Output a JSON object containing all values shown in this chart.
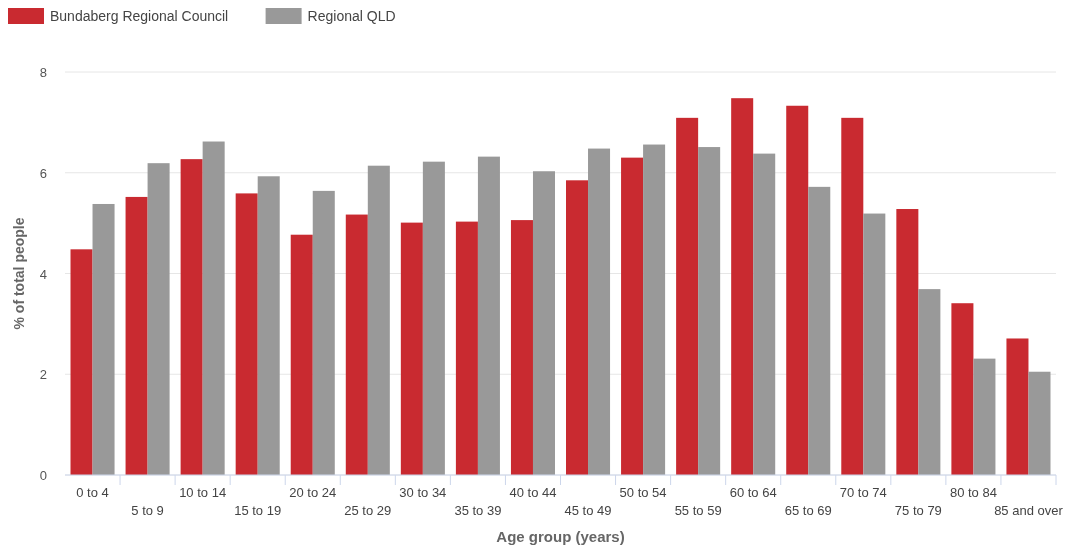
{
  "chart_data": {
    "type": "bar",
    "xlabel": "Age group (years)",
    "ylabel": "% of total people",
    "categories": [
      "0 to 4",
      "5 to 9",
      "10 to 14",
      "15 to 19",
      "20 to 24",
      "25 to 29",
      "30 to 34",
      "35 to 39",
      "40 to 44",
      "45 to 49",
      "50 to 54",
      "55 to 59",
      "60 to 64",
      "65 to 69",
      "70 to 74",
      "75 to 79",
      "80 to 84",
      "85 and over"
    ],
    "series": [
      {
        "name": "Bundaberg Regional Council",
        "color": "#c92a30",
        "values": [
          4.48,
          5.52,
          6.27,
          5.59,
          4.77,
          5.17,
          5.01,
          5.03,
          5.06,
          5.85,
          6.3,
          7.09,
          7.48,
          7.33,
          7.09,
          5.28,
          3.41,
          2.71
        ]
      },
      {
        "name": "Regional QLD",
        "color": "#999999",
        "values": [
          5.38,
          6.19,
          6.62,
          5.93,
          5.64,
          6.14,
          6.22,
          6.32,
          6.03,
          6.48,
          6.56,
          6.51,
          6.38,
          5.72,
          5.19,
          3.69,
          2.31,
          2.05
        ]
      }
    ],
    "ylim": [
      0,
      8
    ],
    "yticks": [
      0,
      2,
      4,
      6,
      8
    ],
    "grid": "y",
    "legend": "top left"
  }
}
